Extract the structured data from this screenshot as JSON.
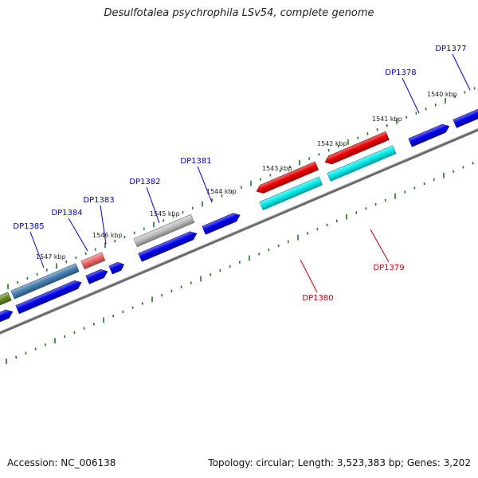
{
  "title": "Desulfotalea psychrophila LSv54, complete genome",
  "footer": {
    "accession": "Accession: NC_006138",
    "summary": "Topology: circular; Length: 3,523,383 bp; Genes: 3,202"
  },
  "colors": {
    "backbone": "#8c8c8c",
    "tick": "#1e7a1e",
    "forward_gene": "#0000ee",
    "reverse_red": "#ee0000",
    "cyan": "#00eeee",
    "steel_blue": "#4682b4",
    "pink": "#ee6a6a",
    "grey": "#c0c0c0",
    "olive": "#6b8e23",
    "label_blue": "#0000cc",
    "label_red": "#cc0000"
  },
  "kbp_labels": [
    "1540 kbp",
    "1541 kbp",
    "1542 kbp",
    "1543 kbp",
    "1544 kbp",
    "1545 kbp",
    "1546 kbp",
    "1547 kbp"
  ],
  "gene_labels": [
    {
      "text": "DP1377",
      "color": "blue"
    },
    {
      "text": "DP1378",
      "color": "blue"
    },
    {
      "text": "DP1379",
      "color": "red"
    },
    {
      "text": "DP1380",
      "color": "red"
    },
    {
      "text": "DP1381",
      "color": "blue"
    },
    {
      "text": "DP1382",
      "color": "blue"
    },
    {
      "text": "DP1383",
      "color": "blue"
    },
    {
      "text": "DP1384",
      "color": "blue"
    },
    {
      "text": "DP1385",
      "color": "blue"
    }
  ]
}
